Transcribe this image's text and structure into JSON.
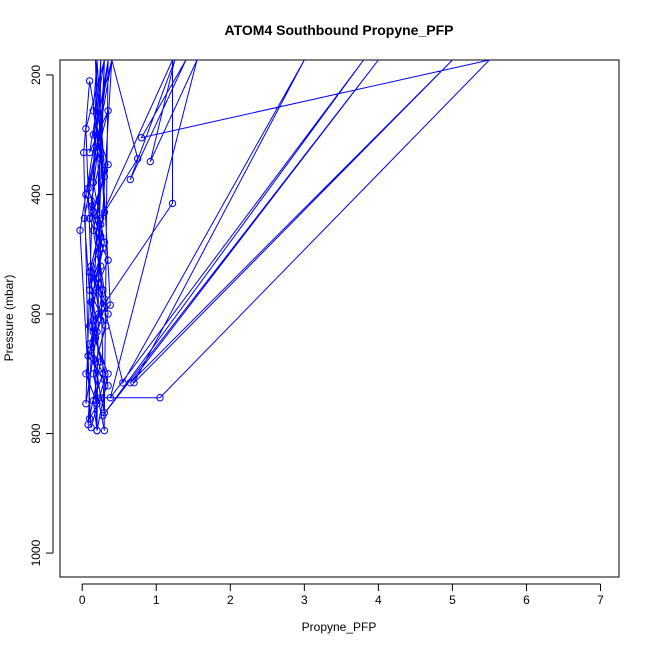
{
  "chart_data": {
    "type": "line",
    "title": "ATOM4 Southbound Propyne_PFP",
    "xlabel": "Propyne_PFP",
    "ylabel": "Pressure (mbar)",
    "xlim": [
      -0.3,
      7.25
    ],
    "ylim": [
      1040,
      175
    ],
    "y_reversed": true,
    "x_ticks": [
      0,
      1,
      2,
      3,
      4,
      5,
      6,
      7
    ],
    "y_ticks": [
      200,
      400,
      600,
      800,
      1000
    ],
    "grid": false,
    "series": [
      {
        "color": "#0000ff",
        "marker": "open-circle",
        "points": [
          [
            0.2,
            175
          ],
          [
            0.15,
            260
          ],
          [
            0.25,
            340
          ],
          [
            0.12,
            410
          ],
          [
            0.3,
            480
          ],
          [
            0.18,
            540
          ],
          [
            0.22,
            600
          ],
          [
            0.1,
            650
          ],
          [
            0.28,
            700
          ],
          [
            0.15,
            745
          ],
          [
            0.2,
            795
          ],
          [
            0.05,
            290
          ],
          [
            0.3,
            175
          ],
          [
            0.1,
            330
          ],
          [
            0.35,
            260
          ],
          [
            0.08,
            390
          ],
          [
            0.25,
            450
          ],
          [
            0.12,
            520
          ],
          [
            0.3,
            575
          ],
          [
            0.15,
            630
          ],
          [
            0.05,
            700
          ],
          [
            0.2,
            750
          ],
          [
            0.03,
            440
          ],
          [
            0.4,
            175
          ],
          [
            0.15,
            300
          ],
          [
            0.3,
            370
          ],
          [
            0.1,
            440
          ],
          [
            0.35,
            510
          ],
          [
            0.18,
            560
          ],
          [
            0.25,
            610
          ],
          [
            0.08,
            670
          ],
          [
            0.3,
            710
          ],
          [
            0.12,
            790
          ],
          [
            -0.03,
            460
          ],
          [
            0.35,
            175
          ],
          [
            0.2,
            320
          ],
          [
            0.05,
            400
          ],
          [
            0.25,
            470
          ],
          [
            0.12,
            530
          ],
          [
            0.3,
            590
          ],
          [
            0.18,
            640
          ],
          [
            0.35,
            720
          ],
          [
            0.1,
            775
          ],
          [
            0.02,
            330
          ],
          [
            0.1,
            210
          ],
          [
            0.22,
            300
          ],
          [
            0.35,
            350
          ],
          [
            0.15,
            430
          ],
          [
            0.28,
            490
          ],
          [
            0.1,
            560
          ],
          [
            0.32,
            620
          ],
          [
            0.18,
            680
          ],
          [
            0.25,
            740
          ],
          [
            1.05,
            740
          ],
          [
            5.5,
            175
          ],
          [
            0.8,
            305
          ],
          [
            1.4,
            175
          ],
          [
            0.65,
            375
          ],
          [
            1.25,
            175
          ],
          [
            0.92,
            345
          ],
          [
            1.55,
            175
          ],
          [
            0.38,
            740
          ],
          [
            3.8,
            175
          ],
          [
            0.28,
            770
          ],
          [
            4.0,
            175
          ],
          [
            0.65,
            715
          ],
          [
            5.0,
            175
          ],
          [
            0.7,
            715
          ],
          [
            3.0,
            175
          ],
          [
            0.55,
            715
          ],
          [
            0.22,
            550
          ],
          [
            0.4,
            175
          ],
          [
            0.75,
            340
          ],
          [
            0.25,
            440
          ],
          [
            1.22,
            175
          ],
          [
            1.22,
            415
          ],
          [
            0.15,
            610
          ],
          [
            0.38,
            585
          ],
          [
            0.2,
            175
          ],
          [
            0.05,
            750
          ],
          [
            0.2,
            630
          ],
          [
            0.1,
            530
          ],
          [
            0.3,
            430
          ],
          [
            0.18,
            175
          ],
          [
            0.3,
            795
          ],
          [
            0.15,
            700
          ],
          [
            0.35,
            600
          ],
          [
            0.22,
            500
          ],
          [
            0.3,
            175
          ],
          [
            0.08,
            785
          ],
          [
            0.25,
            680
          ],
          [
            0.12,
            580
          ],
          [
            0.3,
            480
          ],
          [
            0.15,
            380
          ],
          [
            0.25,
            175
          ],
          [
            0.2,
            795
          ],
          [
            0.35,
            700
          ],
          [
            0.1,
            620
          ],
          [
            0.25,
            520
          ],
          [
            0.12,
            420
          ],
          [
            0.35,
            175
          ],
          [
            0.3,
            765
          ],
          [
            0.12,
            660
          ],
          [
            0.28,
            560
          ],
          [
            0.15,
            460
          ],
          [
            0.3,
            360
          ],
          [
            0.2,
            175
          ]
        ]
      }
    ]
  }
}
